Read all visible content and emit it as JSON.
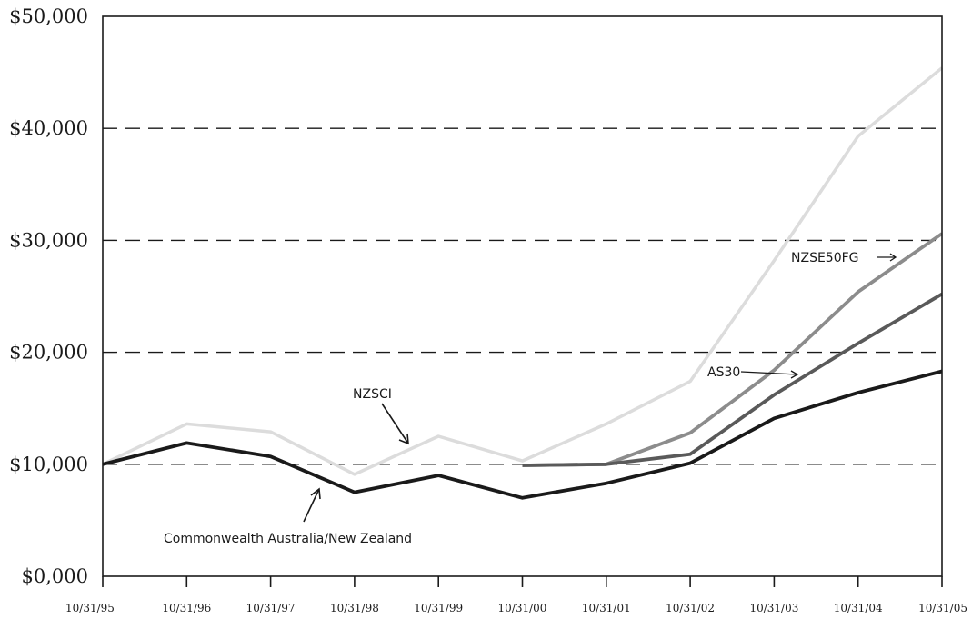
{
  "chart_data": {
    "type": "line",
    "title": "",
    "xlabel": "",
    "ylabel": "",
    "ylim": [
      0,
      50000
    ],
    "yticks": [
      {
        "value": 0,
        "label": "$0,000"
      },
      {
        "value": 10000,
        "label": "$10,000"
      },
      {
        "value": 20000,
        "label": "$20,000"
      },
      {
        "value": 30000,
        "label": "$30,000"
      },
      {
        "value": 40000,
        "label": "$40,000"
      },
      {
        "value": 50000,
        "label": "$50,000"
      }
    ],
    "categories": [
      "10/31/95",
      "10/31/96",
      "10/31/97",
      "10/31/98",
      "10/31/99",
      "10/31/00",
      "10/31/01",
      "10/31/02",
      "10/31/03",
      "10/31/04",
      "10/31/05"
    ],
    "grid": "dashed horizontal",
    "legend": "none",
    "series": [
      {
        "name": "NZSCI",
        "color": "#dcdcdc",
        "values": [
          10000,
          13600,
          12900,
          9100,
          12500,
          10300,
          13600,
          17400,
          28200,
          39300,
          45400
        ]
      },
      {
        "name": "NZSE50FG",
        "color": "#8c8c8c",
        "values": [
          null,
          null,
          null,
          null,
          null,
          9900,
          10000,
          12800,
          18400,
          25400,
          30600
        ]
      },
      {
        "name": "AS30",
        "color": "#5a5a5a",
        "values": [
          null,
          null,
          null,
          null,
          null,
          9900,
          10000,
          10900,
          16200,
          20800,
          25200
        ]
      },
      {
        "name": "Commonwealth Australia/New Zealand",
        "color": "#1a1a1a",
        "values": [
          10000,
          11900,
          10700,
          7500,
          9000,
          7000,
          8300,
          10100,
          14100,
          16400,
          18300
        ]
      }
    ],
    "annotations": [
      {
        "text": "NZSCI",
        "series": "NZSCI"
      },
      {
        "text": "NZSE50FG",
        "series": "NZSE50FG"
      },
      {
        "text": "AS30",
        "series": "AS30"
      },
      {
        "text": "Commonwealth Australia/New Zealand",
        "series": "Commonwealth Australia/New Zealand"
      }
    ]
  }
}
